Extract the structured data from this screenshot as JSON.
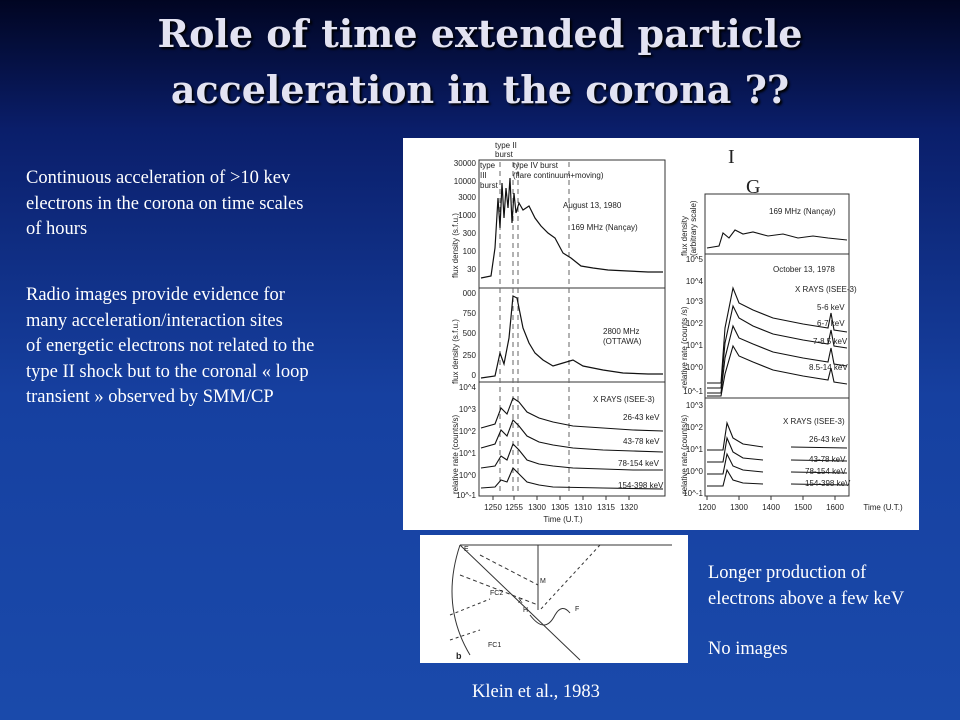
{
  "title_line1": "Role of time extended particle",
  "title_line2": "acceleration in the corona ??",
  "left_block1": [
    "Continuous acceleration of >10 kev",
    "electrons in the corona on time scales",
    "of hours"
  ],
  "left_block2": [
    "Radio images provide evidence for",
    "many acceleration/interaction sites",
    "of energetic electrons not related to the",
    "type II shock but to the coronal « loop",
    "transient » observed by SMM/CP"
  ],
  "right_block": [
    "Longer production of",
    "electrons above a few keV",
    "",
    "No images"
  ],
  "caption": "Klein et al., 1983",
  "overlay_letters": [
    "I",
    "G"
  ],
  "fig_left": {
    "panel1": {
      "ylabel": "flux density (s.f.u.)",
      "ticks": [
        "30000",
        "10000",
        "3000",
        "1000",
        "300",
        "100",
        "30"
      ],
      "labels": [
        "type II",
        "burst",
        "type",
        "III",
        "burst",
        "type IV burst",
        "(flare continuum+moving)",
        "August 13, 1980",
        "169 MHz (Nançay)"
      ]
    },
    "panel2": {
      "ylabel": "flux density (s.f.u.)",
      "ticks": [
        "000",
        "750",
        "500",
        "250",
        "0"
      ],
      "labels": [
        "2800 MHz",
        "(OTTAWA)"
      ]
    },
    "panel3": {
      "ylabel": "relative rate (counts/s)",
      "ticks": [
        "10^4",
        "10^3",
        "10^2",
        "10^1",
        "10^0",
        "10^-1"
      ],
      "labels": [
        "X RAYS (ISEE-3)",
        "26-43 keV",
        "43-78 keV",
        "78-154 keV",
        "154-398 keV"
      ]
    },
    "xticks": [
      "1250",
      "1255",
      "1300",
      "1305",
      "1310",
      "1315",
      "1320"
    ],
    "xlabel": "Time (U.T.)"
  },
  "fig_right": {
    "panel1": {
      "ylabel1": "flux density",
      "ylabel2": "(arbitrary scale)",
      "label": "169 MHz (Nançay)"
    },
    "panel2": {
      "ylabel": "relative rate (counts /s)",
      "ticks": [
        "10^5",
        "10^4",
        "10^3",
        "10^2",
        "10^1",
        "10^0",
        "10^-1"
      ],
      "labels": [
        "October 13, 1978",
        "X RAYS (ISEE-3)",
        "5-6 keV",
        "6-7 keV",
        "7-8.5 keV",
        "8.5-14 keV"
      ]
    },
    "panel3": {
      "ylabel": "relative rate (counts/s)",
      "ticks": [
        "10^3",
        "10^2",
        "10^1",
        "10^0",
        "10^-1"
      ],
      "labels": [
        "X RAYS (ISEE-3)",
        "26-43 keV",
        "43-78 keV",
        "78-154 keV",
        "154-398 keV"
      ]
    },
    "xticks": [
      "1200",
      "1300",
      "1400",
      "1500",
      "1600"
    ],
    "xlabel": "Time (U.T.)"
  },
  "fig2_labels": [
    "E",
    "FC2",
    "FC1",
    "M",
    "X",
    "H",
    "F",
    "b"
  ]
}
